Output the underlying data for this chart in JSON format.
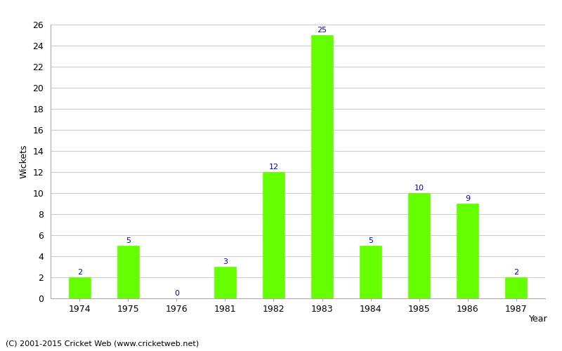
{
  "years": [
    "1974",
    "1975",
    "1976",
    "1981",
    "1982",
    "1983",
    "1984",
    "1985",
    "1986",
    "1987"
  ],
  "values": [
    2,
    5,
    0,
    3,
    12,
    25,
    5,
    10,
    9,
    2
  ],
  "bar_color": "#66ff00",
  "bar_edge_color": "#66ff00",
  "label_color": "#0000cc",
  "xlabel": "Year",
  "ylabel": "Wickets",
  "ylim": [
    0,
    26
  ],
  "yticks": [
    0,
    2,
    4,
    6,
    8,
    10,
    12,
    14,
    16,
    18,
    20,
    22,
    24,
    26
  ],
  "background_color": "#ffffff",
  "grid_color": "#cccccc",
  "footer": "(C) 2001-2015 Cricket Web (www.cricketweb.net)",
  "label_fontsize": 8,
  "axis_tick_fontsize": 9,
  "axis_label_fontsize": 9,
  "footer_fontsize": 8,
  "bar_width": 0.45
}
